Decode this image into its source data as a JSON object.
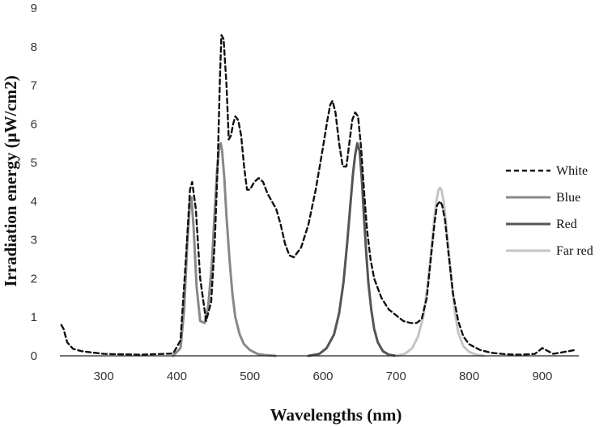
{
  "chart_data": {
    "type": "line",
    "title": "",
    "xlabel": "Wavelengths (nm)",
    "ylabel": "Irradiation energy (μW/cm2)",
    "xlim": [
      240,
      950
    ],
    "ylim": [
      0,
      9
    ],
    "x_ticks": [
      "300",
      "400",
      "500",
      "600",
      "700",
      "800",
      "900"
    ],
    "y_ticks": [
      "0",
      "1",
      "2",
      "3",
      "4",
      "5",
      "6",
      "7",
      "8",
      "9"
    ],
    "grid": false,
    "legend_position": "right",
    "series": [
      {
        "name": "White",
        "color": "#111111",
        "dash": "dashed",
        "x": [
          242,
          245,
          250,
          258,
          270,
          300,
          350,
          395,
          405,
          412,
          418,
          421,
          426,
          432,
          440,
          447,
          452,
          456,
          459,
          461,
          464,
          468,
          471,
          474,
          477,
          480,
          484,
          488,
          492,
          496,
          500,
          506,
          512,
          518,
          524,
          530,
          536,
          542,
          548,
          554,
          560,
          570,
          580,
          590,
          600,
          606,
          610,
          613,
          617,
          622,
          627,
          632,
          636,
          640,
          644,
          648,
          652,
          656,
          660,
          665,
          670,
          680,
          690,
          700,
          710,
          720,
          728,
          735,
          742,
          748,
          753,
          756,
          760,
          763,
          767,
          772,
          778,
          785,
          792,
          800,
          815,
          830,
          850,
          870,
          890,
          900,
          915,
          930,
          945
        ],
        "y": [
          0.8,
          0.7,
          0.35,
          0.18,
          0.12,
          0.05,
          0.03,
          0.06,
          0.4,
          2.4,
          4.3,
          4.5,
          3.8,
          2.0,
          0.9,
          1.4,
          3.0,
          5.0,
          7.2,
          8.3,
          8.2,
          7.0,
          5.6,
          5.7,
          6.0,
          6.2,
          6.1,
          5.7,
          4.9,
          4.3,
          4.3,
          4.5,
          4.6,
          4.5,
          4.2,
          4.0,
          3.8,
          3.4,
          2.9,
          2.6,
          2.55,
          2.8,
          3.4,
          4.3,
          5.4,
          6.1,
          6.5,
          6.6,
          6.3,
          5.5,
          4.9,
          4.9,
          5.5,
          6.1,
          6.3,
          6.2,
          5.4,
          4.3,
          3.3,
          2.5,
          2.0,
          1.5,
          1.2,
          1.05,
          0.9,
          0.85,
          0.85,
          0.95,
          1.5,
          2.6,
          3.5,
          3.9,
          4.0,
          3.9,
          3.5,
          2.6,
          1.6,
          0.9,
          0.5,
          0.3,
          0.15,
          0.08,
          0.04,
          0.03,
          0.05,
          0.2,
          0.05,
          0.1,
          0.15
        ]
      },
      {
        "name": "Blue",
        "color": "#888888",
        "dash": "solid",
        "x": [
          395,
          405,
          410,
          414,
          418,
          420,
          423,
          427,
          432,
          438,
          443,
          448,
          452,
          455,
          458,
          460,
          462,
          465,
          468,
          472,
          476,
          480,
          486,
          492,
          500,
          510,
          520,
          535
        ],
        "y": [
          0.0,
          0.2,
          1.2,
          2.8,
          4.0,
          4.1,
          3.3,
          1.8,
          0.9,
          0.85,
          1.3,
          2.4,
          3.8,
          4.8,
          5.4,
          5.5,
          5.3,
          4.6,
          3.6,
          2.5,
          1.6,
          1.0,
          0.55,
          0.3,
          0.15,
          0.05,
          0.02,
          0.0
        ]
      },
      {
        "name": "Red",
        "color": "#555555",
        "dash": "solid",
        "x": [
          580,
          595,
          605,
          615,
          622,
          628,
          633,
          637,
          641,
          644,
          647,
          650,
          653,
          656,
          659,
          662,
          666,
          670,
          675,
          682,
          690,
          700
        ],
        "y": [
          0.0,
          0.05,
          0.2,
          0.55,
          1.1,
          1.9,
          2.9,
          3.8,
          4.7,
          5.2,
          5.5,
          5.3,
          4.6,
          3.6,
          2.7,
          1.9,
          1.2,
          0.7,
          0.35,
          0.12,
          0.03,
          0.0
        ]
      },
      {
        "name": "Far red",
        "color": "#c4c4c4",
        "dash": "solid",
        "x": [
          700,
          712,
          722,
          730,
          737,
          743,
          748,
          752,
          755,
          758,
          760,
          762,
          765,
          768,
          772,
          776,
          780,
          785,
          792,
          800,
          810,
          820
        ],
        "y": [
          0.0,
          0.05,
          0.2,
          0.5,
          1.0,
          1.8,
          2.7,
          3.5,
          4.0,
          4.3,
          4.35,
          4.3,
          4.0,
          3.5,
          2.7,
          1.9,
          1.2,
          0.6,
          0.25,
          0.1,
          0.03,
          0.0
        ]
      }
    ]
  }
}
